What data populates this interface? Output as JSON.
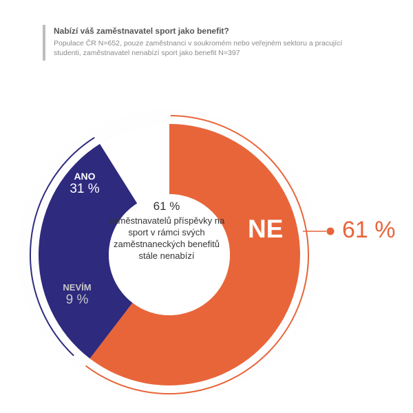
{
  "header": {
    "title": "Nabízí váš zaměstnavatel sport jako benefit?",
    "subtitle": "Populace ČR N=652, pouze zaměstnanci v soukromém nebo veřejném sektoru a pracující studenti, zaměstnavatel nenabízí sport jako benefit N=397"
  },
  "chart_data": {
    "type": "pie",
    "variant": "donut",
    "title": "Nabízí váš zaměstnavatel sport jako benefit?",
    "series": [
      {
        "label": "NE",
        "value": 61,
        "display": "61 %",
        "color": "#e8653a"
      },
      {
        "label": "ANO",
        "value": 31,
        "display": "31 %",
        "color": "#2e2a7e"
      },
      {
        "label": "NEVÍM",
        "value": 9,
        "display": "9 %",
        "color": "#ffffff"
      }
    ],
    "center": {
      "value": "61 %",
      "text": "zaměstnavatelů příspěvky na sport v rámci svých zaměstnaneckých benefitů stále nenabízí"
    },
    "callout": "61 %"
  },
  "colors": {
    "ne": "#e8653a",
    "ano": "#2e2a7e",
    "nevim": "#ffffff",
    "nevim_text": "#c8c8c8",
    "background": "#ffffff"
  }
}
